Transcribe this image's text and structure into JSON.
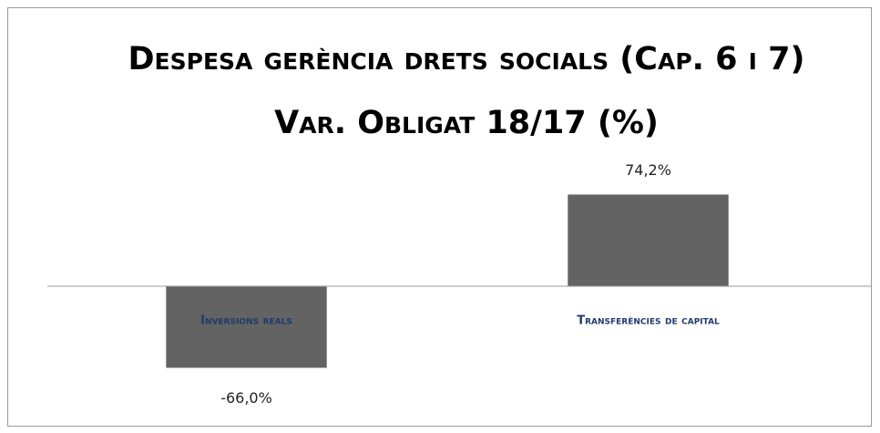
{
  "chart_data": {
    "type": "bar",
    "title": "Despesa gerència drets socials (Cap. 6 i 7) Var. Obligat 18/17 (%)",
    "categories": [
      "Inversions reals",
      "Transferències de capital"
    ],
    "values": [
      -66.0,
      74.2
    ],
    "value_labels": [
      "-66,0%",
      "74,2%"
    ],
    "color": "#636363",
    "ylim": [
      -90,
      90
    ]
  }
}
